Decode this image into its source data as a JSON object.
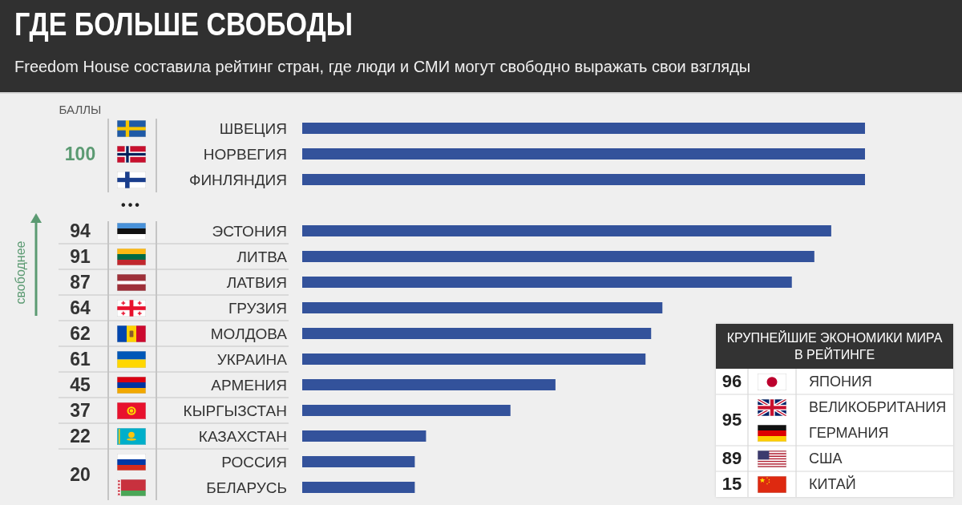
{
  "chart_data": [
    {
      "type": "bar",
      "orientation": "horizontal",
      "title": "ГДЕ БОЛЬШЕ СВОБОДЫ",
      "subtitle": "Freedom House составила рейтинг стран, где люди и СМИ могут свободно выражать свои взгляды",
      "categories": [
        "ШВЕЦИЯ",
        "НОРВЕГИЯ",
        "ФИНЛЯНДИЯ",
        null,
        "ЭСТОНИЯ",
        "ЛИТВА",
        "ЛАТВИЯ",
        "ГРУЗИЯ",
        "МОЛДОВА",
        "УКРАИНА",
        "АРМЕНИЯ",
        "КЫРГЫЗСТАН",
        "КАЗАХСТАН",
        "РОССИЯ",
        "БЕЛАРУСЬ"
      ],
      "values": [
        100,
        100,
        100,
        null,
        94,
        91,
        87,
        64,
        62,
        61,
        45,
        37,
        22,
        20,
        20
      ],
      "value_labels": [
        null,
        "100",
        null,
        null,
        "94",
        "91",
        "87",
        "64",
        "62",
        "61",
        "45",
        "37",
        "22",
        "20",
        null
      ],
      "color": "#33529b",
      "tick_labels": "y",
      "annotations": [
        "БАЛЛЫ",
        "свободнее",
        "•••"
      ]
    },
    {
      "type": "other",
      "title": "КРУПНЕЙШИЕ ЭКОНОМИКИ МИРА В РЕЙТИНГЕ",
      "categories": [
        "ЯПОНИЯ",
        "ВЕЛИКОБРИТАНИЯ",
        "ГЕРМАНИЯ",
        "США",
        "КИТАЙ"
      ],
      "value_labels": [
        "96",
        "95",
        null,
        "89",
        "15"
      ]
    }
  ]
}
